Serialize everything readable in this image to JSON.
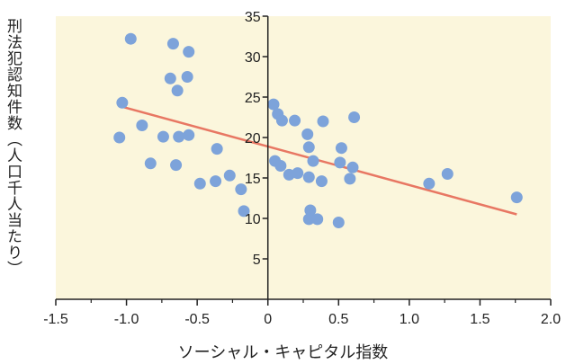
{
  "chart_data": {
    "type": "scatter",
    "title": "",
    "xlabel": "ソーシャル・キャピタル指数",
    "ylabel": "刑法犯認知件数（人口千人当たり）",
    "xlim": [
      -1.5,
      2.0
    ],
    "ylim": [
      0,
      35
    ],
    "x_ticks": [
      "-1.5",
      "-1.0",
      "-0.5",
      "0",
      "0.5",
      "1.0",
      "1.5",
      "2.0"
    ],
    "y_ticks": [
      "5",
      "10",
      "15",
      "20",
      "25",
      "30",
      "35"
    ],
    "grid": false,
    "colors": {
      "plot_bg": "#fbf6dc",
      "point": "#7da3da",
      "trend": "#e87763",
      "axis": "#222222"
    },
    "trendline": {
      "x": [
        -1.03,
        1.76
      ],
      "y": [
        23.8,
        10.5
      ]
    },
    "points": [
      {
        "x": -0.97,
        "y": 32.2
      },
      {
        "x": -0.67,
        "y": 31.6
      },
      {
        "x": -0.56,
        "y": 30.6
      },
      {
        "x": -0.69,
        "y": 27.3
      },
      {
        "x": -0.57,
        "y": 27.5
      },
      {
        "x": -0.64,
        "y": 25.8
      },
      {
        "x": -1.03,
        "y": 24.3
      },
      {
        "x": -0.89,
        "y": 21.5
      },
      {
        "x": -1.05,
        "y": 20.0
      },
      {
        "x": -0.74,
        "y": 20.1
      },
      {
        "x": -0.63,
        "y": 20.1
      },
      {
        "x": -0.56,
        "y": 20.3
      },
      {
        "x": -0.36,
        "y": 18.6
      },
      {
        "x": -0.83,
        "y": 16.8
      },
      {
        "x": -0.65,
        "y": 16.6
      },
      {
        "x": -0.48,
        "y": 14.3
      },
      {
        "x": -0.37,
        "y": 14.6
      },
      {
        "x": -0.27,
        "y": 15.3
      },
      {
        "x": -0.19,
        "y": 13.6
      },
      {
        "x": -0.17,
        "y": 10.9
      },
      {
        "x": 0.04,
        "y": 24.1
      },
      {
        "x": 0.07,
        "y": 22.9
      },
      {
        "x": 0.1,
        "y": 22.1
      },
      {
        "x": 0.19,
        "y": 22.1
      },
      {
        "x": 0.39,
        "y": 22.0
      },
      {
        "x": 0.61,
        "y": 22.5
      },
      {
        "x": 0.28,
        "y": 20.4
      },
      {
        "x": 0.29,
        "y": 18.8
      },
      {
        "x": 0.52,
        "y": 18.7
      },
      {
        "x": 0.05,
        "y": 17.1
      },
      {
        "x": 0.09,
        "y": 16.5
      },
      {
        "x": 0.32,
        "y": 17.1
      },
      {
        "x": 0.51,
        "y": 16.9
      },
      {
        "x": 0.6,
        "y": 16.3
      },
      {
        "x": 0.15,
        "y": 15.4
      },
      {
        "x": 0.21,
        "y": 15.6
      },
      {
        "x": 0.29,
        "y": 15.1
      },
      {
        "x": 0.38,
        "y": 14.6
      },
      {
        "x": 0.58,
        "y": 14.9
      },
      {
        "x": 0.3,
        "y": 11.0
      },
      {
        "x": 0.29,
        "y": 9.9
      },
      {
        "x": 0.35,
        "y": 9.9
      },
      {
        "x": 0.5,
        "y": 9.5
      },
      {
        "x": 1.14,
        "y": 14.3
      },
      {
        "x": 1.27,
        "y": 15.5
      },
      {
        "x": 1.76,
        "y": 12.6
      }
    ]
  }
}
